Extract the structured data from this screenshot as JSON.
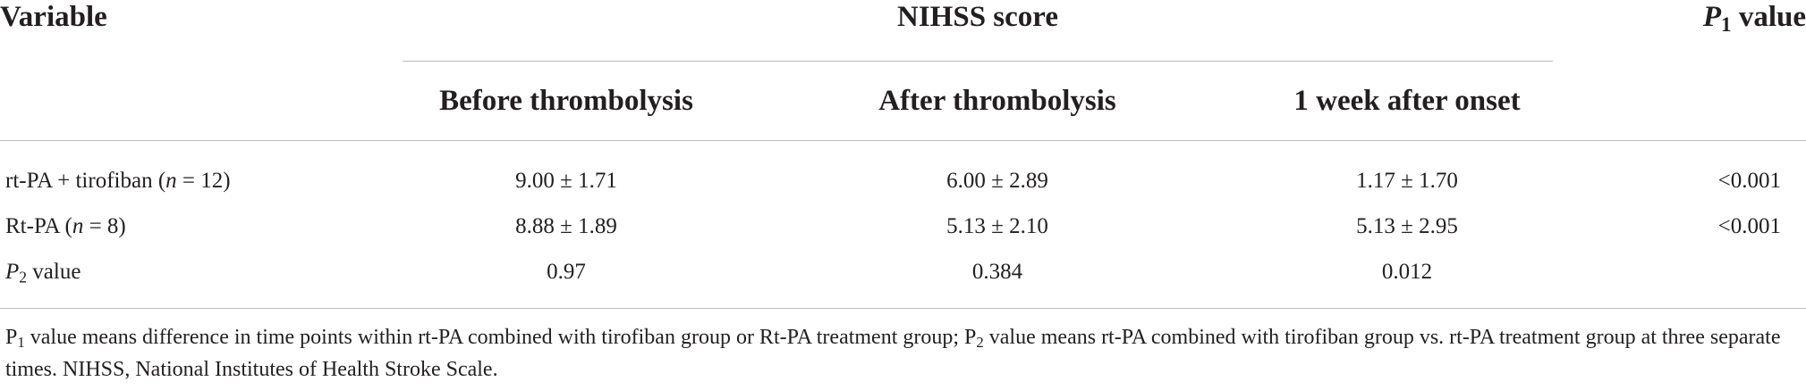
{
  "table": {
    "header": {
      "variable": "Variable",
      "group": "NIHSS score",
      "p1": {
        "letter": "P",
        "sub": "1",
        "rest": " value"
      },
      "columns": [
        "Before thrombolysis",
        "After thrombolysis",
        "1 week after onset"
      ]
    },
    "rows": [
      {
        "label_pre": "rt-PA + tirofiban (",
        "label_n": "n",
        "label_post": " = 12)",
        "before": "9.00 ± 1.71",
        "after": "6.00 ± 2.89",
        "week": "1.17 ± 1.70",
        "p1": "<0.001"
      },
      {
        "label_pre": "Rt-PA (",
        "label_n": "n",
        "label_post": " = 8)",
        "before": "8.88 ± 1.89",
        "after": "5.13 ± 2.10",
        "week": "5.13 ± 2.95",
        "p1": "<0.001"
      },
      {
        "label_letter": "P",
        "label_sub": "2",
        "label_rest": " value",
        "before": "0.97",
        "after": "0.384",
        "week": "0.012",
        "p1": ""
      }
    ]
  },
  "footnote": {
    "p1_letter": "P",
    "p1_sub": "1",
    "p1_text": " value means difference in time points within rt-PA combined with tirofiban group or Rt-PA treatment group; ",
    "p2_letter": "P",
    "p2_sub": "2",
    "p2_text": " value means rt-PA combined with tirofiban group vs. rt-PA treatment group at three separate times. NIHSS, National Institutes of Health Stroke Scale."
  }
}
